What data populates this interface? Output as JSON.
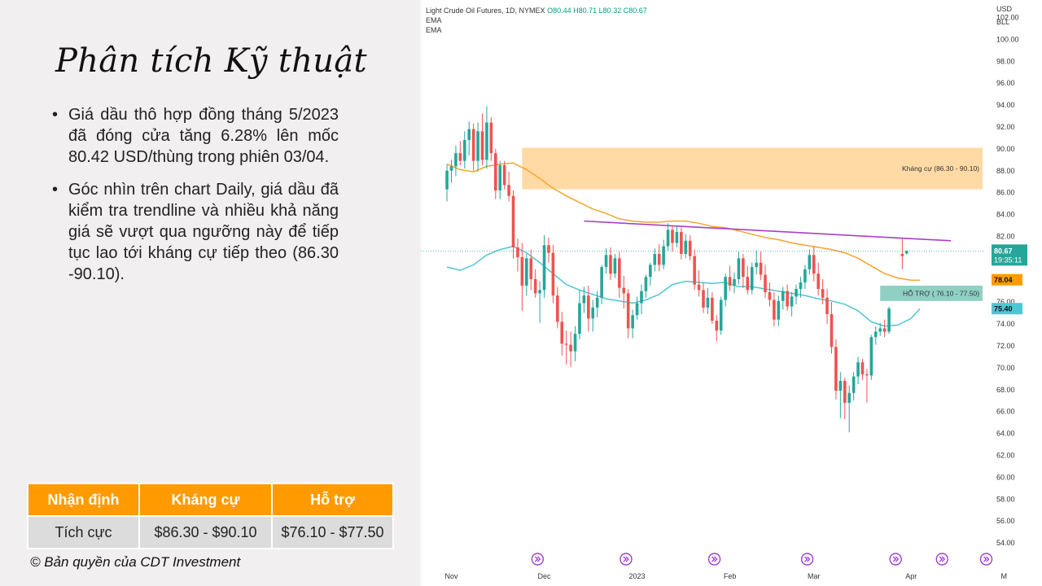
{
  "slide": {
    "title": "Phân tích Kỹ thuật",
    "bullets": [
      "Giá dầu thô hợp đồng tháng 5/2023 đã đóng cửa tăng 6.28% lên mốc 80.42 USD/thùng trong phiên 03/04.",
      "Góc nhìn trên chart Daily, giá dầu đã kiểm tra trendline và nhiều khả năng giá sẽ vượt qua ngưỡng này để tiếp tục lao tới kháng cự tiếp theo (86.30 -90.10)."
    ],
    "table": {
      "headers": [
        "Nhận định",
        "Kháng cự",
        "Hỗ trợ"
      ],
      "row": [
        "Tích cực",
        "$86.30 - $90.10",
        "$76.10 - $77.50"
      ]
    },
    "copyright": "© Bản quyền của CDT Investment"
  },
  "colors": {
    "accent": "#ff9b00",
    "up": "#26a69a",
    "down": "#ef5350",
    "ema_fast": "#4fc6d3",
    "ema_slow": "#f6a42c",
    "trendline": "#a93fc4",
    "resistance_zone": "#ffd8a0",
    "support_zone": "#8fd0c3"
  },
  "chart_header": {
    "symbol": "Light Crude Oil Futures, 1D, NYMEX",
    "o": "O80.44",
    "h": "H80.71",
    "l": "L80.32",
    "c": "C80.67",
    "ind1": "EMA",
    "ind2": "EMA"
  },
  "chart_data": {
    "type": "candlestick",
    "title": "Light Crude Oil Futures, 1D, NYMEX",
    "currency": "USD",
    "unit": "BLL",
    "ylim": [
      53,
      104
    ],
    "y_ticks": [
      "54.00",
      "56.00",
      "58.00",
      "60.00",
      "62.00",
      "64.00",
      "66.00",
      "68.00",
      "70.00",
      "72.00",
      "74.00",
      "76.00",
      "78.00",
      "80.00",
      "82.00",
      "84.00",
      "86.00",
      "88.00",
      "90.00",
      "92.00",
      "94.00",
      "96.00",
      "98.00",
      "100.00",
      "102.00"
    ],
    "x_labels": [
      {
        "label": "Nov",
        "day": 0
      },
      {
        "label": "Dec",
        "day": 21
      },
      {
        "label": "2023",
        "day": 42
      },
      {
        "label": "Feb",
        "day": 63
      },
      {
        "label": "Mar",
        "day": 82
      },
      {
        "label": "Apr",
        "day": 104
      },
      {
        "label": "M",
        "day": 125
      }
    ],
    "last_price": {
      "value": 80.67,
      "label": "80.67",
      "timer": "19:35:11"
    },
    "ema_labels": [
      {
        "value": 78.04,
        "label": "78.04"
      },
      {
        "value": 75.4,
        "label": "75.40"
      }
    ],
    "zones": [
      {
        "name": "Kháng cự (86.30 - 90.10)",
        "low": 86.3,
        "high": 90.1,
        "from_day": 16,
        "to_day": 131
      },
      {
        "name": "HỖ TRỢ ( 76.10 - 77.50)",
        "low": 76.1,
        "high": 77.5,
        "from_day": 97,
        "to_day": 131
      }
    ],
    "trendline": {
      "from": {
        "day": 30,
        "value": 83.4
      },
      "to": {
        "day": 113,
        "value": 81.6
      }
    },
    "ema_fast": [
      [
        -1,
        79.2
      ],
      [
        2,
        78.9
      ],
      [
        5,
        79.4
      ],
      [
        8,
        80.3
      ],
      [
        11,
        80.8
      ],
      [
        14,
        81.1
      ],
      [
        17,
        80.5
      ],
      [
        20,
        79.6
      ],
      [
        23,
        78.6
      ],
      [
        26,
        77.6
      ],
      [
        29,
        77.1
      ],
      [
        32,
        76.7
      ],
      [
        35,
        76.3
      ],
      [
        38,
        76.1
      ],
      [
        41,
        75.9
      ],
      [
        44,
        76.2
      ],
      [
        47,
        76.7
      ],
      [
        50,
        77.6
      ],
      [
        53,
        77.9
      ],
      [
        56,
        77.8
      ],
      [
        59,
        77.7
      ],
      [
        62,
        77.8
      ],
      [
        65,
        77.4
      ],
      [
        68,
        77.4
      ],
      [
        71,
        77.2
      ],
      [
        74,
        77.0
      ],
      [
        77,
        76.8
      ],
      [
        80,
        76.6
      ],
      [
        83,
        76.3
      ],
      [
        86,
        76.1
      ],
      [
        89,
        75.8
      ],
      [
        92,
        75.2
      ],
      [
        95,
        74.2
      ],
      [
        98,
        73.8
      ],
      [
        101,
        73.9
      ],
      [
        104,
        74.5
      ],
      [
        106,
        75.4
      ]
    ],
    "ema_slow": [
      [
        -1,
        88.6
      ],
      [
        2,
        88.1
      ],
      [
        5,
        87.9
      ],
      [
        8,
        88.4
      ],
      [
        11,
        88.6
      ],
      [
        14,
        88.7
      ],
      [
        17,
        88.1
      ],
      [
        20,
        87.3
      ],
      [
        23,
        86.4
      ],
      [
        26,
        85.7
      ],
      [
        29,
        85.1
      ],
      [
        32,
        84.5
      ],
      [
        35,
        84.1
      ],
      [
        38,
        83.6
      ],
      [
        41,
        83.4
      ],
      [
        44,
        83.3
      ],
      [
        47,
        83.3
      ],
      [
        50,
        83.4
      ],
      [
        53,
        83.4
      ],
      [
        56,
        83.2
      ],
      [
        59,
        82.9
      ],
      [
        62,
        82.8
      ],
      [
        65,
        82.5
      ],
      [
        68,
        82.2
      ],
      [
        71,
        81.9
      ],
      [
        74,
        81.7
      ],
      [
        77,
        81.4
      ],
      [
        80,
        81.2
      ],
      [
        83,
        81.0
      ],
      [
        86,
        80.8
      ],
      [
        89,
        80.5
      ],
      [
        92,
        80.0
      ],
      [
        95,
        79.3
      ],
      [
        98,
        78.6
      ],
      [
        101,
        78.2
      ],
      [
        104,
        78.0
      ],
      [
        106,
        78.0
      ]
    ],
    "candles": [
      {
        "day": -1,
        "o": 86.3,
        "h": 88.6,
        "l": 85.2,
        "c": 88.0
      },
      {
        "day": 0,
        "o": 88.0,
        "h": 89.0,
        "l": 86.9,
        "c": 88.4
      },
      {
        "day": 1,
        "o": 88.4,
        "h": 90.3,
        "l": 87.5,
        "c": 89.6
      },
      {
        "day": 2,
        "o": 89.6,
        "h": 90.7,
        "l": 88.5,
        "c": 88.9
      },
      {
        "day": 3,
        "o": 88.9,
        "h": 91.6,
        "l": 88.2,
        "c": 90.8
      },
      {
        "day": 4,
        "o": 90.8,
        "h": 92.5,
        "l": 89.4,
        "c": 91.8
      },
      {
        "day": 5,
        "o": 91.8,
        "h": 92.3,
        "l": 88.0,
        "c": 88.9
      },
      {
        "day": 6,
        "o": 88.9,
        "h": 92.4,
        "l": 87.9,
        "c": 91.6
      },
      {
        "day": 7,
        "o": 91.6,
        "h": 93.2,
        "l": 88.5,
        "c": 89.0
      },
      {
        "day": 8,
        "o": 89.0,
        "h": 93.9,
        "l": 88.2,
        "c": 92.4
      },
      {
        "day": 9,
        "o": 92.4,
        "h": 92.9,
        "l": 88.9,
        "c": 89.6
      },
      {
        "day": 10,
        "o": 89.6,
        "h": 90.0,
        "l": 85.4,
        "c": 86.2
      },
      {
        "day": 11,
        "o": 86.2,
        "h": 88.9,
        "l": 85.4,
        "c": 88.5
      },
      {
        "day": 12,
        "o": 88.5,
        "h": 88.9,
        "l": 86.3,
        "c": 86.7
      },
      {
        "day": 13,
        "o": 86.7,
        "h": 87.9,
        "l": 85.2,
        "c": 85.7
      },
      {
        "day": 14,
        "o": 85.7,
        "h": 86.2,
        "l": 80.0,
        "c": 81.0
      },
      {
        "day": 15,
        "o": 81.0,
        "h": 81.8,
        "l": 78.8,
        "c": 80.1
      },
      {
        "day": 16,
        "o": 80.1,
        "h": 81.4,
        "l": 75.2,
        "c": 77.5
      },
      {
        "day": 17,
        "o": 77.5,
        "h": 80.4,
        "l": 76.6,
        "c": 80.0
      },
      {
        "day": 18,
        "o": 80.0,
        "h": 80.8,
        "l": 77.1,
        "c": 78.1
      },
      {
        "day": 19,
        "o": 78.1,
        "h": 79.0,
        "l": 76.4,
        "c": 76.8
      },
      {
        "day": 20,
        "o": 76.8,
        "h": 77.9,
        "l": 74.1,
        "c": 77.1
      },
      {
        "day": 21,
        "o": 77.1,
        "h": 82.1,
        "l": 76.4,
        "c": 81.2
      },
      {
        "day": 22,
        "o": 81.2,
        "h": 81.9,
        "l": 79.6,
        "c": 80.5
      },
      {
        "day": 23,
        "o": 80.5,
        "h": 81.2,
        "l": 75.9,
        "c": 76.6
      },
      {
        "day": 24,
        "o": 76.6,
        "h": 77.4,
        "l": 73.6,
        "c": 74.2
      },
      {
        "day": 25,
        "o": 74.2,
        "h": 75.1,
        "l": 71.1,
        "c": 72.2
      },
      {
        "day": 26,
        "o": 72.2,
        "h": 73.4,
        "l": 70.3,
        "c": 72.1
      },
      {
        "day": 27,
        "o": 72.1,
        "h": 73.3,
        "l": 70.1,
        "c": 71.5
      },
      {
        "day": 28,
        "o": 71.5,
        "h": 73.8,
        "l": 70.6,
        "c": 73.1
      },
      {
        "day": 29,
        "o": 73.1,
        "h": 77.1,
        "l": 72.6,
        "c": 75.9
      },
      {
        "day": 30,
        "o": 75.9,
        "h": 77.4,
        "l": 75.0,
        "c": 76.6
      },
      {
        "day": 31,
        "o": 76.6,
        "h": 77.5,
        "l": 73.3,
        "c": 74.5
      },
      {
        "day": 32,
        "o": 74.5,
        "h": 76.2,
        "l": 73.3,
        "c": 75.5
      },
      {
        "day": 33,
        "o": 75.5,
        "h": 77.0,
        "l": 74.6,
        "c": 76.4
      },
      {
        "day": 34,
        "o": 76.4,
        "h": 79.4,
        "l": 75.8,
        "c": 79.2
      },
      {
        "day": 35,
        "o": 79.2,
        "h": 80.9,
        "l": 78.6,
        "c": 80.3
      },
      {
        "day": 36,
        "o": 80.3,
        "h": 81.0,
        "l": 78.0,
        "c": 78.6
      },
      {
        "day": 37,
        "o": 78.6,
        "h": 80.4,
        "l": 78.2,
        "c": 80.0
      },
      {
        "day": 38,
        "o": 80.0,
        "h": 80.6,
        "l": 76.4,
        "c": 77.3
      },
      {
        "day": 39,
        "o": 77.3,
        "h": 78.4,
        "l": 75.4,
        "c": 76.8
      },
      {
        "day": 40,
        "o": 76.8,
        "h": 77.2,
        "l": 72.7,
        "c": 73.6
      },
      {
        "day": 41,
        "o": 73.6,
        "h": 75.3,
        "l": 72.7,
        "c": 74.8
      },
      {
        "day": 42,
        "o": 74.8,
        "h": 76.5,
        "l": 74.4,
        "c": 75.9
      },
      {
        "day": 43,
        "o": 75.9,
        "h": 77.6,
        "l": 74.9,
        "c": 77.0
      },
      {
        "day": 44,
        "o": 77.0,
        "h": 78.5,
        "l": 76.4,
        "c": 78.3
      },
      {
        "day": 45,
        "o": 78.3,
        "h": 79.6,
        "l": 77.5,
        "c": 79.4
      },
      {
        "day": 46,
        "o": 79.4,
        "h": 80.9,
        "l": 78.8,
        "c": 80.4
      },
      {
        "day": 47,
        "o": 80.4,
        "h": 81.3,
        "l": 78.8,
        "c": 79.4
      },
      {
        "day": 48,
        "o": 79.4,
        "h": 81.7,
        "l": 79.0,
        "c": 81.1
      },
      {
        "day": 49,
        "o": 81.1,
        "h": 83.2,
        "l": 80.7,
        "c": 82.6
      },
      {
        "day": 50,
        "o": 82.6,
        "h": 83.0,
        "l": 80.6,
        "c": 81.4
      },
      {
        "day": 51,
        "o": 81.4,
        "h": 82.9,
        "l": 81.0,
        "c": 82.4
      },
      {
        "day": 52,
        "o": 82.4,
        "h": 82.8,
        "l": 79.9,
        "c": 80.4
      },
      {
        "day": 53,
        "o": 80.4,
        "h": 82.2,
        "l": 80.0,
        "c": 81.6
      },
      {
        "day": 54,
        "o": 81.6,
        "h": 82.1,
        "l": 79.8,
        "c": 80.2
      },
      {
        "day": 55,
        "o": 80.2,
        "h": 80.8,
        "l": 77.1,
        "c": 77.6
      },
      {
        "day": 56,
        "o": 77.6,
        "h": 78.9,
        "l": 76.5,
        "c": 77.1
      },
      {
        "day": 57,
        "o": 77.1,
        "h": 77.8,
        "l": 75.0,
        "c": 75.5
      },
      {
        "day": 58,
        "o": 75.5,
        "h": 77.3,
        "l": 74.9,
        "c": 76.4
      },
      {
        "day": 59,
        "o": 76.4,
        "h": 76.9,
        "l": 74.0,
        "c": 74.3
      },
      {
        "day": 60,
        "o": 74.3,
        "h": 74.8,
        "l": 72.4,
        "c": 73.4
      },
      {
        "day": 61,
        "o": 73.4,
        "h": 76.5,
        "l": 73.0,
        "c": 76.2
      },
      {
        "day": 62,
        "o": 76.2,
        "h": 78.6,
        "l": 75.6,
        "c": 78.3
      },
      {
        "day": 63,
        "o": 78.3,
        "h": 79.3,
        "l": 77.0,
        "c": 77.5
      },
      {
        "day": 64,
        "o": 77.5,
        "h": 78.7,
        "l": 76.8,
        "c": 78.1
      },
      {
        "day": 65,
        "o": 78.1,
        "h": 80.6,
        "l": 77.6,
        "c": 80.0
      },
      {
        "day": 66,
        "o": 80.0,
        "h": 80.4,
        "l": 77.3,
        "c": 78.3
      },
      {
        "day": 67,
        "o": 78.3,
        "h": 79.3,
        "l": 76.7,
        "c": 77.1
      },
      {
        "day": 68,
        "o": 77.1,
        "h": 79.6,
        "l": 76.7,
        "c": 79.2
      },
      {
        "day": 69,
        "o": 79.2,
        "h": 80.7,
        "l": 78.5,
        "c": 79.6
      },
      {
        "day": 70,
        "o": 79.6,
        "h": 80.6,
        "l": 78.0,
        "c": 78.5
      },
      {
        "day": 71,
        "o": 78.5,
        "h": 79.4,
        "l": 76.4,
        "c": 76.9
      },
      {
        "day": 72,
        "o": 76.9,
        "h": 77.8,
        "l": 75.6,
        "c": 76.2
      },
      {
        "day": 73,
        "o": 76.2,
        "h": 76.9,
        "l": 73.8,
        "c": 74.4
      },
      {
        "day": 74,
        "o": 74.4,
        "h": 76.6,
        "l": 73.8,
        "c": 76.1
      },
      {
        "day": 75,
        "o": 76.1,
        "h": 77.4,
        "l": 75.3,
        "c": 77.0
      },
      {
        "day": 76,
        "o": 77.0,
        "h": 77.6,
        "l": 75.2,
        "c": 75.6
      },
      {
        "day": 77,
        "o": 75.6,
        "h": 76.9,
        "l": 74.7,
        "c": 76.5
      },
      {
        "day": 78,
        "o": 76.5,
        "h": 77.6,
        "l": 75.8,
        "c": 77.2
      },
      {
        "day": 79,
        "o": 77.2,
        "h": 78.3,
        "l": 76.4,
        "c": 77.8
      },
      {
        "day": 80,
        "o": 77.8,
        "h": 79.4,
        "l": 77.2,
        "c": 79.0
      },
      {
        "day": 81,
        "o": 79.0,
        "h": 80.8,
        "l": 78.5,
        "c": 80.3
      },
      {
        "day": 82,
        "o": 80.3,
        "h": 81.1,
        "l": 77.9,
        "c": 78.6
      },
      {
        "day": 83,
        "o": 78.6,
        "h": 79.6,
        "l": 76.6,
        "c": 77.2
      },
      {
        "day": 84,
        "o": 77.2,
        "h": 78.1,
        "l": 75.8,
        "c": 76.4
      },
      {
        "day": 85,
        "o": 76.4,
        "h": 77.2,
        "l": 74.0,
        "c": 74.9
      },
      {
        "day": 86,
        "o": 74.9,
        "h": 76.0,
        "l": 71.3,
        "c": 71.9
      },
      {
        "day": 87,
        "o": 71.9,
        "h": 72.6,
        "l": 67.1,
        "c": 67.9
      },
      {
        "day": 88,
        "o": 67.9,
        "h": 69.6,
        "l": 65.4,
        "c": 68.8
      },
      {
        "day": 89,
        "o": 68.8,
        "h": 69.1,
        "l": 65.3,
        "c": 66.8
      },
      {
        "day": 90,
        "o": 66.8,
        "h": 68.4,
        "l": 64.1,
        "c": 67.7
      },
      {
        "day": 91,
        "o": 67.7,
        "h": 69.6,
        "l": 67.0,
        "c": 69.2
      },
      {
        "day": 92,
        "o": 69.2,
        "h": 71.0,
        "l": 68.5,
        "c": 70.5
      },
      {
        "day": 93,
        "o": 70.5,
        "h": 70.8,
        "l": 68.9,
        "c": 69.4
      },
      {
        "day": 94,
        "o": 69.4,
        "h": 69.9,
        "l": 66.8,
        "c": 69.3
      },
      {
        "day": 95,
        "o": 69.3,
        "h": 73.0,
        "l": 68.9,
        "c": 72.8
      },
      {
        "day": 96,
        "o": 72.8,
        "h": 73.8,
        "l": 72.1,
        "c": 73.3
      },
      {
        "day": 97,
        "o": 73.3,
        "h": 74.1,
        "l": 72.9,
        "c": 73.6
      },
      {
        "day": 98,
        "o": 73.6,
        "h": 74.4,
        "l": 72.8,
        "c": 73.3
      },
      {
        "day": 99,
        "o": 73.3,
        "h": 75.6,
        "l": 73.1,
        "c": 75.4
      },
      {
        "day": 102,
        "o": 80.4,
        "h": 81.8,
        "l": 79.0,
        "c": 80.2
      },
      {
        "day": 103,
        "o": 80.44,
        "h": 80.71,
        "l": 80.32,
        "c": 80.67
      }
    ]
  }
}
